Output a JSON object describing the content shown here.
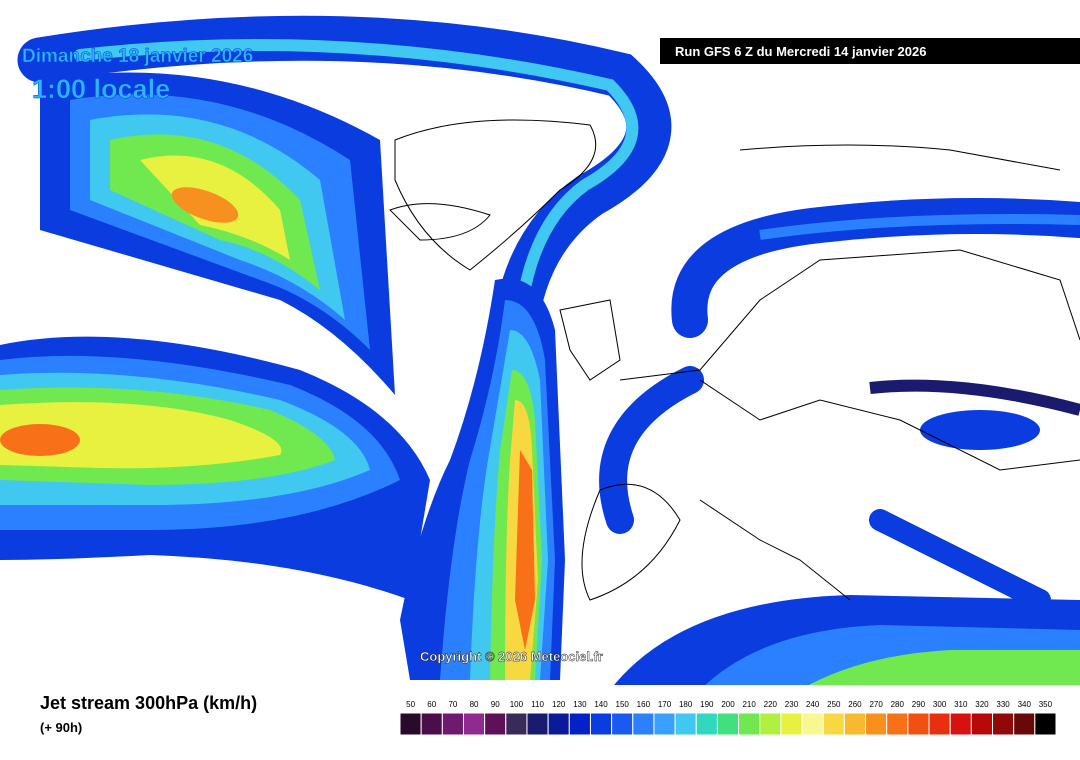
{
  "header": {
    "date": "Dimanche 18 janvier 2026",
    "time": "1:00 locale",
    "run": "Run GFS 6 Z du Mercredi 14 janvier 2026"
  },
  "copyright": "Copyright © 2026 Meteociel.fr",
  "legend": {
    "title": "Jet stream 300hPa (km/h)",
    "subtitle": "(+ 90h)",
    "values": [
      50,
      60,
      70,
      80,
      90,
      100,
      110,
      120,
      130,
      140,
      150,
      160,
      170,
      180,
      190,
      200,
      210,
      220,
      230,
      240,
      250,
      260,
      270,
      280,
      290,
      300,
      310,
      320,
      330,
      340,
      350
    ],
    "colors": [
      "#2a0a2a",
      "#4a0f4a",
      "#6e1a70",
      "#8e2a90",
      "#5e1058",
      "#3a2a5a",
      "#1a1a6e",
      "#0a1a9a",
      "#0022c8",
      "#0a3ce0",
      "#1a5af0",
      "#2a80ff",
      "#3aa0ff",
      "#40c8f0",
      "#30d8c0",
      "#40e080",
      "#70e850",
      "#b0f040",
      "#e8f040",
      "#f8f890",
      "#f8d840",
      "#f8b830",
      "#f89020",
      "#f87018",
      "#f05010",
      "#e83010",
      "#d81010",
      "#b80808",
      "#900808",
      "#680808",
      "#000000"
    ]
  }
}
